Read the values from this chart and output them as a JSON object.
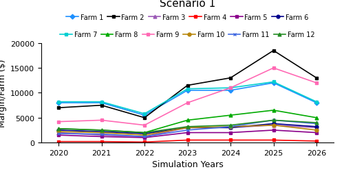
{
  "title": "Scenario 1",
  "xlabel": "Simulation Years",
  "ylabel": "Margin/Farm ($)",
  "years": [
    2020,
    2021,
    2022,
    2023,
    2024,
    2025,
    2026
  ],
  "farms": {
    "Farm 1": [
      8000,
      8000,
      5500,
      10500,
      10500,
      12000,
      8000
    ],
    "Farm 2": [
      7000,
      7500,
      5000,
      11500,
      13000,
      18500,
      13000
    ],
    "Farm 3": [
      2000,
      1500,
      1200,
      3000,
      3000,
      3500,
      3000
    ],
    "Farm 4": [
      200,
      200,
      100,
      500,
      500,
      500,
      300
    ],
    "Farm 5": [
      1500,
      1200,
      1000,
      2000,
      2000,
      2500,
      2000
    ],
    "Farm 6": [
      2500,
      2200,
      1800,
      3000,
      3000,
      3800,
      3200
    ],
    "Farm 7": [
      8200,
      8200,
      5800,
      10800,
      11000,
      12200,
      8200
    ],
    "Farm 8": [
      2800,
      2500,
      2000,
      4500,
      5500,
      6500,
      5000
    ],
    "Farm 9": [
      4200,
      4500,
      3500,
      8000,
      11000,
      15000,
      12000
    ],
    "Farm 10": [
      2200,
      2000,
      1500,
      3000,
      3200,
      3500,
      2500
    ],
    "Farm 11": [
      1800,
      1700,
      1200,
      2500,
      3200,
      4500,
      3800
    ],
    "Farm 12": [
      2800,
      2500,
      2000,
      3200,
      3500,
      4500,
      4000
    ]
  },
  "colors": {
    "Farm 1": "#1E90FF",
    "Farm 2": "#000000",
    "Farm 3": "#9B59B6",
    "Farm 4": "#FF0000",
    "Farm 5": "#8B008B",
    "Farm 6": "#00008B",
    "Farm 7": "#00CED1",
    "Farm 8": "#00AA00",
    "Farm 9": "#FF69B4",
    "Farm 10": "#B8860B",
    "Farm 11": "#4169E1",
    "Farm 12": "#228B22"
  },
  "markers": {
    "Farm 1": "D",
    "Farm 2": "s",
    "Farm 3": "^",
    "Farm 4": "s",
    "Farm 5": "s",
    "Farm 6": "o",
    "Farm 7": "s",
    "Farm 8": "^",
    "Farm 9": "s",
    "Farm 10": "o",
    "Farm 11": "x",
    "Farm 12": "^"
  },
  "ylim": [
    0,
    20000
  ],
  "yticks": [
    0,
    5000,
    10000,
    15000,
    20000
  ],
  "title_fontsize": 11,
  "axis_fontsize": 9,
  "tick_fontsize": 8,
  "legend_fontsize": 7
}
